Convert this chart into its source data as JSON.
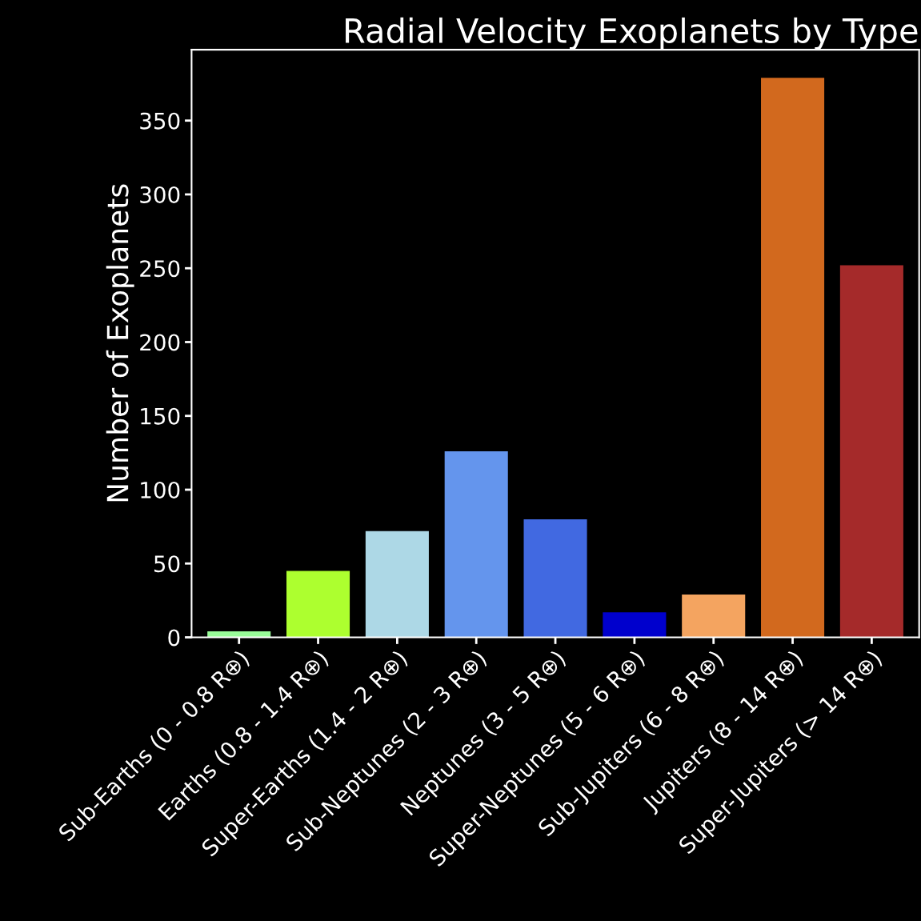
{
  "chart_data": {
    "type": "bar",
    "title": "Radial Velocity Exoplanets by Type",
    "ylabel": "Number of Exoplanets",
    "categories": [
      "Sub-Earths (0 - 0.8 R⊕)",
      "Earths (0.8 - 1.4 R⊕)",
      "Super-Earths (1.4 - 2 R⊕)",
      "Sub-Neptunes (2 - 3 R⊕)",
      "Neptunes (3 - 5 R⊕)",
      "Super-Neptunes (5 - 6 R⊕)",
      "Sub-Jupiters (6 - 8 R⊕)",
      "Jupiters (8 - 14 R⊕)",
      "Super-Jupiters (> 14 R⊕)"
    ],
    "values": [
      4,
      45,
      72,
      126,
      80,
      17,
      29,
      379,
      252
    ],
    "colors": [
      "#98fb98",
      "#adff2f",
      "#add8e6",
      "#6495ed",
      "#4169e1",
      "#0000cd",
      "#f4a460",
      "#d2691e",
      "#a52a2a"
    ],
    "ylim": [
      0,
      398
    ],
    "yticks": [
      0,
      50,
      100,
      150,
      200,
      250,
      300,
      350
    ],
    "grid": false,
    "legend": false
  }
}
